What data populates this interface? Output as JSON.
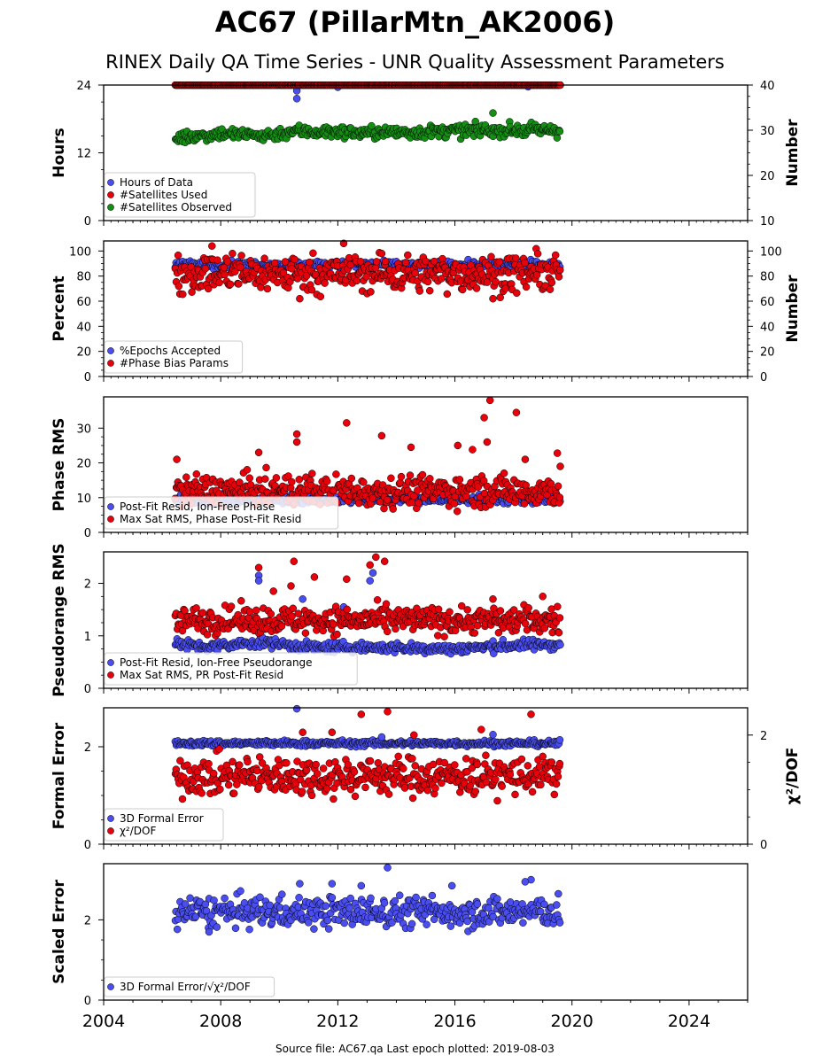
{
  "header": {
    "title": "AC67 (PillarMtn_AK2006)",
    "subtitle": "RINEX Daily QA Time Series - UNR Quality Assessment Parameters"
  },
  "footer": {
    "text": "Source file: AC67.qa Last epoch plotted: 2019-08-03"
  },
  "colors": {
    "blue": "#4a4ef0",
    "red": "#e8000b",
    "green": "#148f14",
    "edge": "#000000"
  },
  "chart_data": [
    {
      "type": "scatter",
      "panel": "hours",
      "xlim": [
        2004,
        2026
      ],
      "xticks": [
        2004,
        2008,
        2012,
        2016,
        2020,
        2024
      ],
      "xtick_labels": [
        "2004",
        "2008",
        "2012",
        "2016",
        "2020",
        "2024"
      ],
      "ylabel": "Hours",
      "ylim": [
        0,
        24
      ],
      "yticks": [
        0,
        12,
        24
      ],
      "ytick_labels": [
        "0",
        "12",
        "24"
      ],
      "y2label": "Number",
      "y2lim": [
        10,
        40
      ],
      "y2ticks": [
        10,
        20,
        30,
        40
      ],
      "y2tick_labels": [
        "10",
        "20",
        "30",
        "40"
      ],
      "legend_position": "lower-left",
      "series": [
        {
          "name": "Hours of Data",
          "color": "#4a4ef0",
          "axis": "left",
          "baseline": 24.0,
          "spread": 0.05,
          "outliers": [
            [
              2010.6,
              23.0
            ],
            [
              2010.6,
              21.6
            ],
            [
              2012.0,
              23.6
            ],
            [
              2018.5,
              23.7
            ]
          ]
        },
        {
          "name": "#Satellites Used",
          "color": "#e8000b",
          "axis": "right",
          "baseline": 40.0,
          "spread": 0.05,
          "outliers": []
        },
        {
          "name": "#Satellites Observed",
          "color": "#148f14",
          "axis": "right",
          "trend": [
            [
              2006.4,
              28.2
            ],
            [
              2008.0,
              29.3
            ],
            [
              2009.5,
              28.8
            ],
            [
              2010.5,
              29.8
            ],
            [
              2013.0,
              29.4
            ],
            [
              2015.0,
              29.6
            ],
            [
              2017.0,
              30.0
            ],
            [
              2019.6,
              30.0
            ]
          ],
          "spread": 0.7,
          "outliers": [
            [
              2017.3,
              33.8
            ]
          ]
        }
      ],
      "x_range": [
        2006.45,
        2019.59
      ]
    },
    {
      "type": "scatter",
      "panel": "percent",
      "xlim": [
        2004,
        2026
      ],
      "xticks": [
        2004,
        2008,
        2012,
        2016,
        2020,
        2024
      ],
      "xtick_labels": [
        "2004",
        "2008",
        "2012",
        "2016",
        "2020",
        "2024"
      ],
      "ylabel": "Percent",
      "ylim": [
        0,
        108
      ],
      "yticks": [
        0,
        20,
        40,
        60,
        80,
        100
      ],
      "ytick_labels": [
        "0",
        "20",
        "40",
        "60",
        "80",
        "100"
      ],
      "y2label": "Number",
      "y2lim": [
        0,
        108
      ],
      "y2ticks": [
        0,
        20,
        40,
        60,
        80,
        100
      ],
      "y2tick_labels": [
        "0",
        "20",
        "40",
        "60",
        "80",
        "100"
      ],
      "legend_position": "lower-left",
      "series": [
        {
          "name": "%Epochs Accepted",
          "color": "#4a4ef0",
          "axis": "left",
          "baseline": 89,
          "spread": 1.5,
          "outliers": []
        },
        {
          "name": "#Phase Bias Params",
          "color": "#e8000b",
          "axis": "right",
          "baseline": 82,
          "spread": 7.5,
          "outliers": [
            [
              2007.7,
              104
            ],
            [
              2012.2,
              106
            ],
            [
              2010.7,
              62
            ],
            [
              2017.3,
              62
            ],
            [
              2013.5,
              98
            ],
            [
              2008.4,
              98
            ]
          ]
        }
      ],
      "x_range": [
        2006.45,
        2019.59
      ]
    },
    {
      "type": "scatter",
      "panel": "phase_rms",
      "xlim": [
        2004,
        2026
      ],
      "xticks": [
        2004,
        2008,
        2012,
        2016,
        2020,
        2024
      ],
      "xtick_labels": [
        "2004",
        "2008",
        "2012",
        "2016",
        "2020",
        "2024"
      ],
      "ylabel": "Phase RMS",
      "ylim": [
        0,
        39
      ],
      "yticks": [
        0,
        10,
        20,
        30
      ],
      "ytick_labels": [
        "0",
        "10",
        "20",
        "30"
      ],
      "legend_position": "lower-left",
      "series": [
        {
          "name": "Post-Fit Resid, Ion-Free Phase",
          "color": "#4a4ef0",
          "axis": "left",
          "baseline": 9.5,
          "spread": 0.6,
          "outliers": []
        },
        {
          "name": "Max Sat RMS, Phase Post-Fit Resid",
          "color": "#e8000b",
          "axis": "left",
          "baseline": 12,
          "spread": 2.3,
          "outliers": [
            [
              2017.2,
              38
            ],
            [
              2018.1,
              34.5
            ],
            [
              2017.0,
              33
            ],
            [
              2012.3,
              31.5
            ],
            [
              2013.5,
              27.8
            ],
            [
              2010.6,
              28.3
            ],
            [
              2010.6,
              26
            ],
            [
              2017.1,
              26
            ],
            [
              2016.1,
              25
            ],
            [
              2016.6,
              23.8
            ],
            [
              2009.3,
              23
            ],
            [
              2019.5,
              22.8
            ],
            [
              2014.5,
              24.5
            ],
            [
              2018.4,
              21
            ],
            [
              2006.5,
              21
            ],
            [
              2019.6,
              19
            ]
          ]
        }
      ],
      "x_range": [
        2006.45,
        2019.59
      ]
    },
    {
      "type": "scatter",
      "panel": "pseudorange_rms",
      "xlim": [
        2004,
        2026
      ],
      "xticks": [
        2004,
        2008,
        2012,
        2016,
        2020,
        2024
      ],
      "xtick_labels": [
        "2004",
        "2008",
        "2012",
        "2016",
        "2020",
        "2024"
      ],
      "ylabel": "Pseudorange RMS",
      "ylim": [
        0,
        2.6
      ],
      "yticks": [
        0,
        1,
        2
      ],
      "ytick_labels": [
        "0",
        "1",
        "2"
      ],
      "legend_position": "lower-left",
      "series": [
        {
          "name": "Post-Fit Resid, Ion-Free Pseudorange",
          "color": "#4a4ef0",
          "axis": "left",
          "trend": [
            [
              2006.4,
              0.85
            ],
            [
              2007.5,
              0.78
            ],
            [
              2009.5,
              0.88
            ],
            [
              2011.0,
              0.78
            ],
            [
              2013.0,
              0.78
            ],
            [
              2016.0,
              0.75
            ],
            [
              2018.0,
              0.82
            ],
            [
              2019.6,
              0.84
            ]
          ],
          "spread": 0.05,
          "outliers": [
            [
              2009.3,
              2.15
            ],
            [
              2009.3,
              2.05
            ],
            [
              2010.8,
              1.7
            ],
            [
              2013.2,
              2.2
            ],
            [
              2013.1,
              2.05
            ],
            [
              2012.2,
              1.55
            ]
          ]
        },
        {
          "name": "Max Sat RMS, PR Post-Fit Resid",
          "color": "#e8000b",
          "axis": "left",
          "baseline": 1.3,
          "spread": 0.13,
          "outliers": [
            [
              2009.3,
              2.3
            ],
            [
              2010.5,
              2.42
            ],
            [
              2013.3,
              2.5
            ],
            [
              2013.6,
              2.42
            ],
            [
              2013.1,
              2.35
            ],
            [
              2011.2,
              2.12
            ],
            [
              2012.3,
              2.08
            ],
            [
              2010.4,
              1.95
            ],
            [
              2019.0,
              1.75
            ],
            [
              2017.3,
              1.7
            ],
            [
              2009.8,
              1.85
            ]
          ]
        }
      ],
      "x_range": [
        2006.45,
        2019.59
      ]
    },
    {
      "type": "scatter",
      "panel": "formal_error",
      "xlim": [
        2004,
        2026
      ],
      "xticks": [
        2004,
        2008,
        2012,
        2016,
        2020,
        2024
      ],
      "xtick_labels": [
        "2004",
        "2008",
        "2012",
        "2016",
        "2020",
        "2024"
      ],
      "ylabel": "Formal Error",
      "ylim": [
        0,
        2.8
      ],
      "yticks": [
        0,
        2
      ],
      "ytick_labels": [
        "0",
        "2"
      ],
      "y2label": "χ²/DOF",
      "y2lim": [
        0,
        2.5
      ],
      "y2ticks": [
        0,
        2
      ],
      "y2tick_labels": [
        "0",
        "2"
      ],
      "legend_position": "lower-left",
      "series": [
        {
          "name": "3D Formal Error",
          "color": "#4a4ef0",
          "axis": "left",
          "baseline": 2.07,
          "spread": 0.03,
          "outliers": [
            [
              2010.6,
              2.78
            ],
            [
              2017.3,
              2.25
            ],
            [
              2013.5,
              2.2
            ]
          ]
        },
        {
          "name": "χ²/DOF",
          "color": "#e8000b",
          "axis": "right",
          "baseline": 1.25,
          "spread": 0.18,
          "outliers": [
            [
              2013.7,
              2.43
            ],
            [
              2012.8,
              2.38
            ],
            [
              2016.9,
              2.1
            ],
            [
              2018.6,
              2.38
            ],
            [
              2011.8,
              2.05
            ],
            [
              2010.8,
              2.05
            ],
            [
              2014.6,
              2.0
            ]
          ]
        }
      ],
      "x_range": [
        2006.45,
        2019.59
      ]
    },
    {
      "type": "scatter",
      "panel": "scaled_error",
      "xlim": [
        2004,
        2026
      ],
      "xticks": [
        2004,
        2008,
        2012,
        2016,
        2020,
        2024
      ],
      "xtick_labels": [
        "2004",
        "2008",
        "2012",
        "2016",
        "2020",
        "2024"
      ],
      "ylabel": "Scaled Error",
      "ylim": [
        0,
        3.4
      ],
      "yticks": [
        0,
        2
      ],
      "ytick_labels": [
        "0",
        "2"
      ],
      "legend_position": "lower-left",
      "series": [
        {
          "name": "3D Formal Error/√χ²/DOF",
          "color": "#4a4ef0",
          "axis": "left",
          "baseline": 2.2,
          "spread": 0.2,
          "outliers": [
            [
              2013.7,
              3.3
            ],
            [
              2018.6,
              3.0
            ],
            [
              2018.4,
              2.95
            ],
            [
              2010.7,
              2.9
            ],
            [
              2011.8,
              2.9
            ],
            [
              2012.8,
              2.85
            ],
            [
              2007.6,
              1.7
            ],
            [
              2015.9,
              2.85
            ]
          ]
        }
      ],
      "x_range": [
        2006.45,
        2019.59
      ]
    }
  ]
}
